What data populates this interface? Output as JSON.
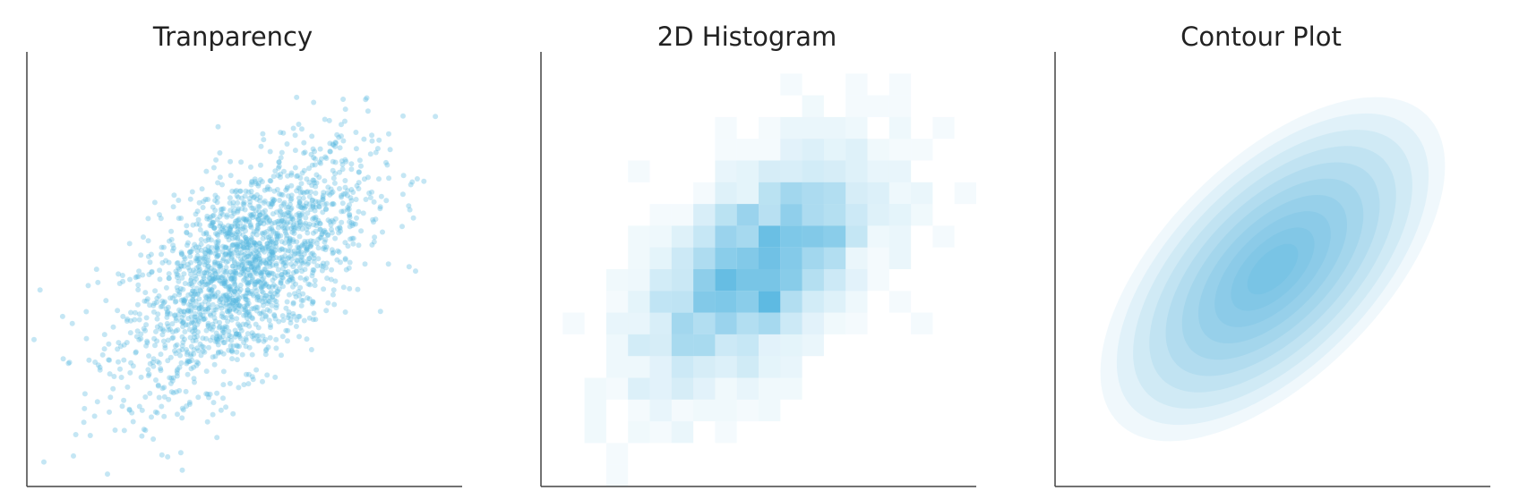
{
  "colors": {
    "accent": "#55b6e0",
    "axis": "#444444",
    "text": "#222222"
  },
  "chart_data": [
    {
      "type": "scatter",
      "title": "Tranparency",
      "xlabel": "",
      "ylabel": "",
      "xlim": [
        -3.6,
        3.6
      ],
      "ylim": [
        -3.6,
        3.6
      ],
      "grid": false,
      "point_opacity": 0.35,
      "distribution": {
        "kind": "bivariate-normal",
        "mean": [
          0,
          0
        ],
        "std": [
          1,
          1
        ],
        "correlation": 0.6,
        "n": 2000
      }
    },
    {
      "type": "heatmap",
      "title": "2D Histogram",
      "xlabel": "",
      "ylabel": "",
      "xlim": [
        -3.6,
        3.6
      ],
      "ylim": [
        -3.6,
        3.6
      ],
      "grid": false,
      "bins": 20,
      "distribution": {
        "kind": "bivariate-normal",
        "mean": [
          0,
          0
        ],
        "std": [
          1,
          1
        ],
        "correlation": 0.6,
        "n": 2000
      }
    },
    {
      "type": "contour",
      "title": "Contour Plot",
      "xlabel": "",
      "ylabel": "",
      "xlim": [
        -3.6,
        3.6
      ],
      "ylim": [
        -3.6,
        3.6
      ],
      "grid": false,
      "filled": true,
      "levels": 10,
      "distribution": {
        "kind": "bivariate-normal",
        "mean": [
          0,
          0
        ],
        "std": [
          1,
          1
        ],
        "correlation": 0.6
      }
    }
  ]
}
